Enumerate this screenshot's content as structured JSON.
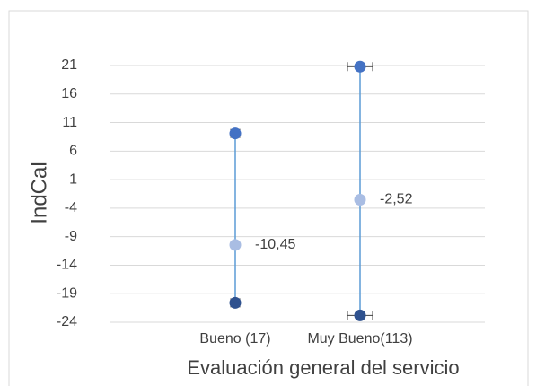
{
  "chart_data": {
    "type": "range-dot",
    "x_label": "Evaluación general del servicio",
    "y_label": "IndCal",
    "categories": [
      "Bueno (17)",
      "Muy Bueno(113)"
    ],
    "series": [
      {
        "color": "#4472c4",
        "values": [
          9.1,
          20.8
        ]
      },
      {
        "color": "#a9bde3",
        "values": [
          -10.45,
          -2.52
        ],
        "value_labels": [
          "-10,45",
          "-2,52"
        ]
      },
      {
        "color": "#2f528f",
        "values": [
          -20.6,
          -22.8
        ]
      }
    ],
    "line_color": "#5b9bd5",
    "ylim": [
      -24,
      21
    ],
    "yticks": [
      -24,
      -19,
      -14,
      -9,
      -4,
      1,
      6,
      11,
      16,
      21
    ],
    "grid": true
  }
}
